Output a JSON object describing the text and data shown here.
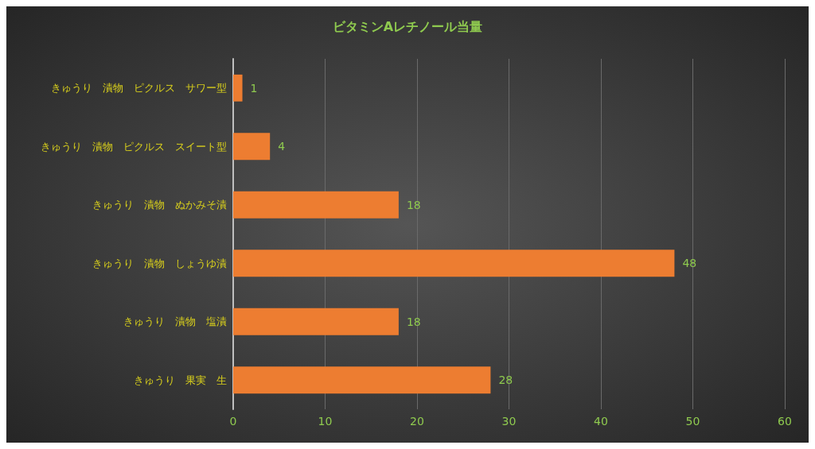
{
  "chart_data": {
    "type": "bar",
    "orientation": "horizontal",
    "title": "ビタミンAレチノール当量",
    "categories": [
      "きゅうり　漬物　ピクルス　サワー型",
      "きゅうり　漬物　ピクルス　スイート型",
      "きゅうり　漬物　ぬかみそ漬",
      "きゅうり　漬物　しょうゆ漬",
      "きゅうり　漬物　塩漬",
      "きゅうり　果実　生"
    ],
    "values": [
      1,
      4,
      18,
      48,
      18,
      28
    ],
    "color": "#ed7d31",
    "xlim": [
      0,
      60
    ],
    "xticks": [
      0,
      10,
      20,
      30,
      40,
      50,
      60
    ],
    "grid": "x",
    "data_labels": true
  }
}
